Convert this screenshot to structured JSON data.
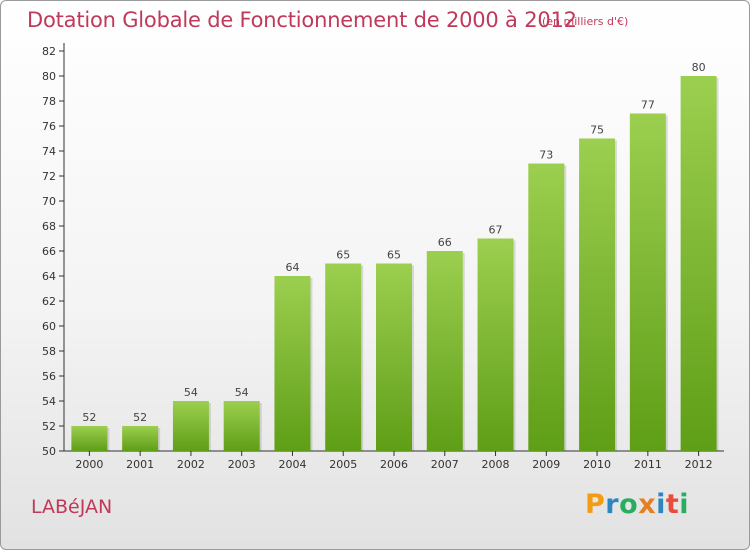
{
  "chart_data": {
    "type": "bar",
    "title": "Dotation Globale de Fonctionnement de 2000 à 2012",
    "subtitle": "(en milliers d'€)",
    "categories": [
      "2000",
      "2001",
      "2002",
      "2003",
      "2004",
      "2005",
      "2006",
      "2007",
      "2008",
      "2009",
      "2010",
      "2011",
      "2012"
    ],
    "values": [
      52,
      52,
      54,
      54,
      64,
      65,
      65,
      66,
      67,
      73,
      75,
      77,
      80
    ],
    "ylim": [
      50,
      82
    ],
    "yticks": [
      50,
      52,
      54,
      56,
      58,
      60,
      62,
      64,
      66,
      68,
      70,
      72,
      74,
      76,
      78,
      80,
      82
    ],
    "grid": false,
    "bar_color": "#7cba2e",
    "bar_color_light": "#9ccf4f",
    "bar_color_dark": "#5f9e17"
  },
  "commune": "LABéJAN",
  "brand": {
    "letters": [
      "P",
      "r",
      "o",
      "x",
      "i",
      "t",
      "i"
    ],
    "colors": [
      "#f39c12",
      "#2e86c1",
      "#27ae60",
      "#e67e22",
      "#2e86c1",
      "#e74c3c",
      "#27ae60"
    ]
  },
  "colors": {
    "accent": "#c0395a",
    "axis": "#333333"
  }
}
